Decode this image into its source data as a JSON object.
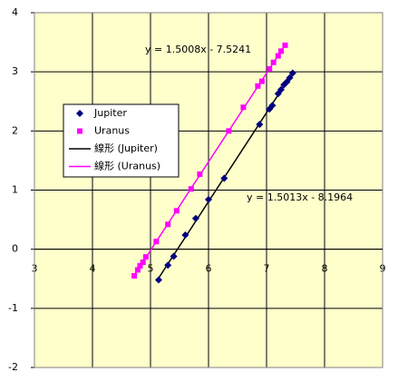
{
  "chart_data": {
    "type": "scatter",
    "xlim": [
      3,
      9
    ],
    "xticks": [
      3,
      4,
      5,
      6,
      7,
      8,
      9
    ],
    "ylim": [
      -2,
      4
    ],
    "yticks": [
      -2,
      -1,
      0,
      1,
      2,
      3,
      4
    ],
    "grid": true,
    "legend": "left",
    "series": [
      {
        "name": "Jupiter",
        "color": "#000080",
        "marker": "diamond",
        "x": [
          5.14,
          5.3,
          5.4,
          5.6,
          5.78,
          6.0,
          6.27,
          6.88,
          7.05,
          7.1,
          7.2,
          7.25,
          7.3,
          7.35,
          7.4,
          7.45
        ],
        "values": [
          -0.52,
          -0.27,
          -0.12,
          0.24,
          0.52,
          0.84,
          1.2,
          2.11,
          2.37,
          2.43,
          2.63,
          2.7,
          2.78,
          2.83,
          2.9,
          2.98
        ],
        "trendline": {
          "name": "線形 (Jupiter)",
          "color": "#000000",
          "equation": "y = 1.5013x - 8.1964"
        }
      },
      {
        "name": "Uranus",
        "color": "#ff00ff",
        "marker": "square",
        "x": [
          4.72,
          4.78,
          4.82,
          4.87,
          4.92,
          5.1,
          5.3,
          5.45,
          5.7,
          5.85,
          6.35,
          6.6,
          6.85,
          6.92,
          7.05,
          7.12,
          7.2,
          7.25,
          7.32
        ],
        "values": [
          -0.45,
          -0.35,
          -0.28,
          -0.22,
          -0.13,
          0.13,
          0.42,
          0.65,
          1.02,
          1.27,
          2.0,
          2.4,
          2.76,
          2.84,
          3.05,
          3.16,
          3.27,
          3.35,
          3.45
        ],
        "trendline": {
          "name": "線形 (Uranus)",
          "color": "#ff00ff",
          "equation": "y = 1.5008x - 7.5241"
        }
      }
    ]
  }
}
